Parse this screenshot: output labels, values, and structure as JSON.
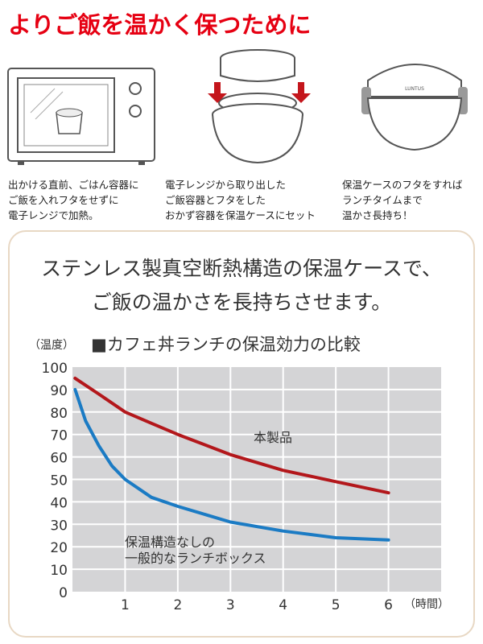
{
  "title": "よりご飯を温かく保つために",
  "steps": [
    {
      "lines": [
        "出かける直前、ごはん容器に",
        "ご飯を入れフタをせずに",
        "電子レンジで加熱。"
      ]
    },
    {
      "lines": [
        "電子レンジから取り出した",
        "ご飯容器とフタをした",
        "おかず容器を保温ケースにセット"
      ]
    },
    {
      "lines": [
        "保温ケースのフタをすれば",
        "ランチタイムまで",
        "温かさ長持ち！"
      ]
    }
  ],
  "heading": [
    "ステンレス製真空断熱構造の保温ケースで、",
    "ご飯の温かさを長持ちさせます。"
  ],
  "colors": {
    "title": "#e60012",
    "product": "#b3171b",
    "normal": "#1b7bc4",
    "plot_bg": "#d4d4d6",
    "border": "#e8d8c4"
  },
  "chart_data": {
    "type": "line",
    "title": "■カフェ丼ランチの保温効力の比較",
    "ylabel": "（温度）",
    "xlabel": "（時間）",
    "xlim": [
      0,
      7
    ],
    "ylim": [
      0,
      100
    ],
    "xticks": [
      1,
      2,
      3,
      4,
      5,
      6
    ],
    "yticks": [
      0,
      10,
      20,
      30,
      40,
      50,
      60,
      70,
      80,
      90,
      100
    ],
    "grid": true,
    "series": [
      {
        "name": "本製品",
        "color": "#b3171b",
        "x": [
          0.05,
          0.5,
          1,
          1.5,
          2,
          3,
          4,
          5,
          6
        ],
        "y": [
          95,
          88,
          80,
          75,
          70,
          61,
          54,
          49,
          44
        ]
      },
      {
        "name": "保温構造なしの一般的なランチボックス",
        "color": "#1b7bc4",
        "x": [
          0.05,
          0.25,
          0.5,
          0.75,
          1,
          1.5,
          2,
          3,
          4,
          5,
          6
        ],
        "y": [
          90,
          76,
          65,
          56,
          50,
          42,
          38,
          31,
          27,
          24,
          23
        ]
      }
    ]
  }
}
